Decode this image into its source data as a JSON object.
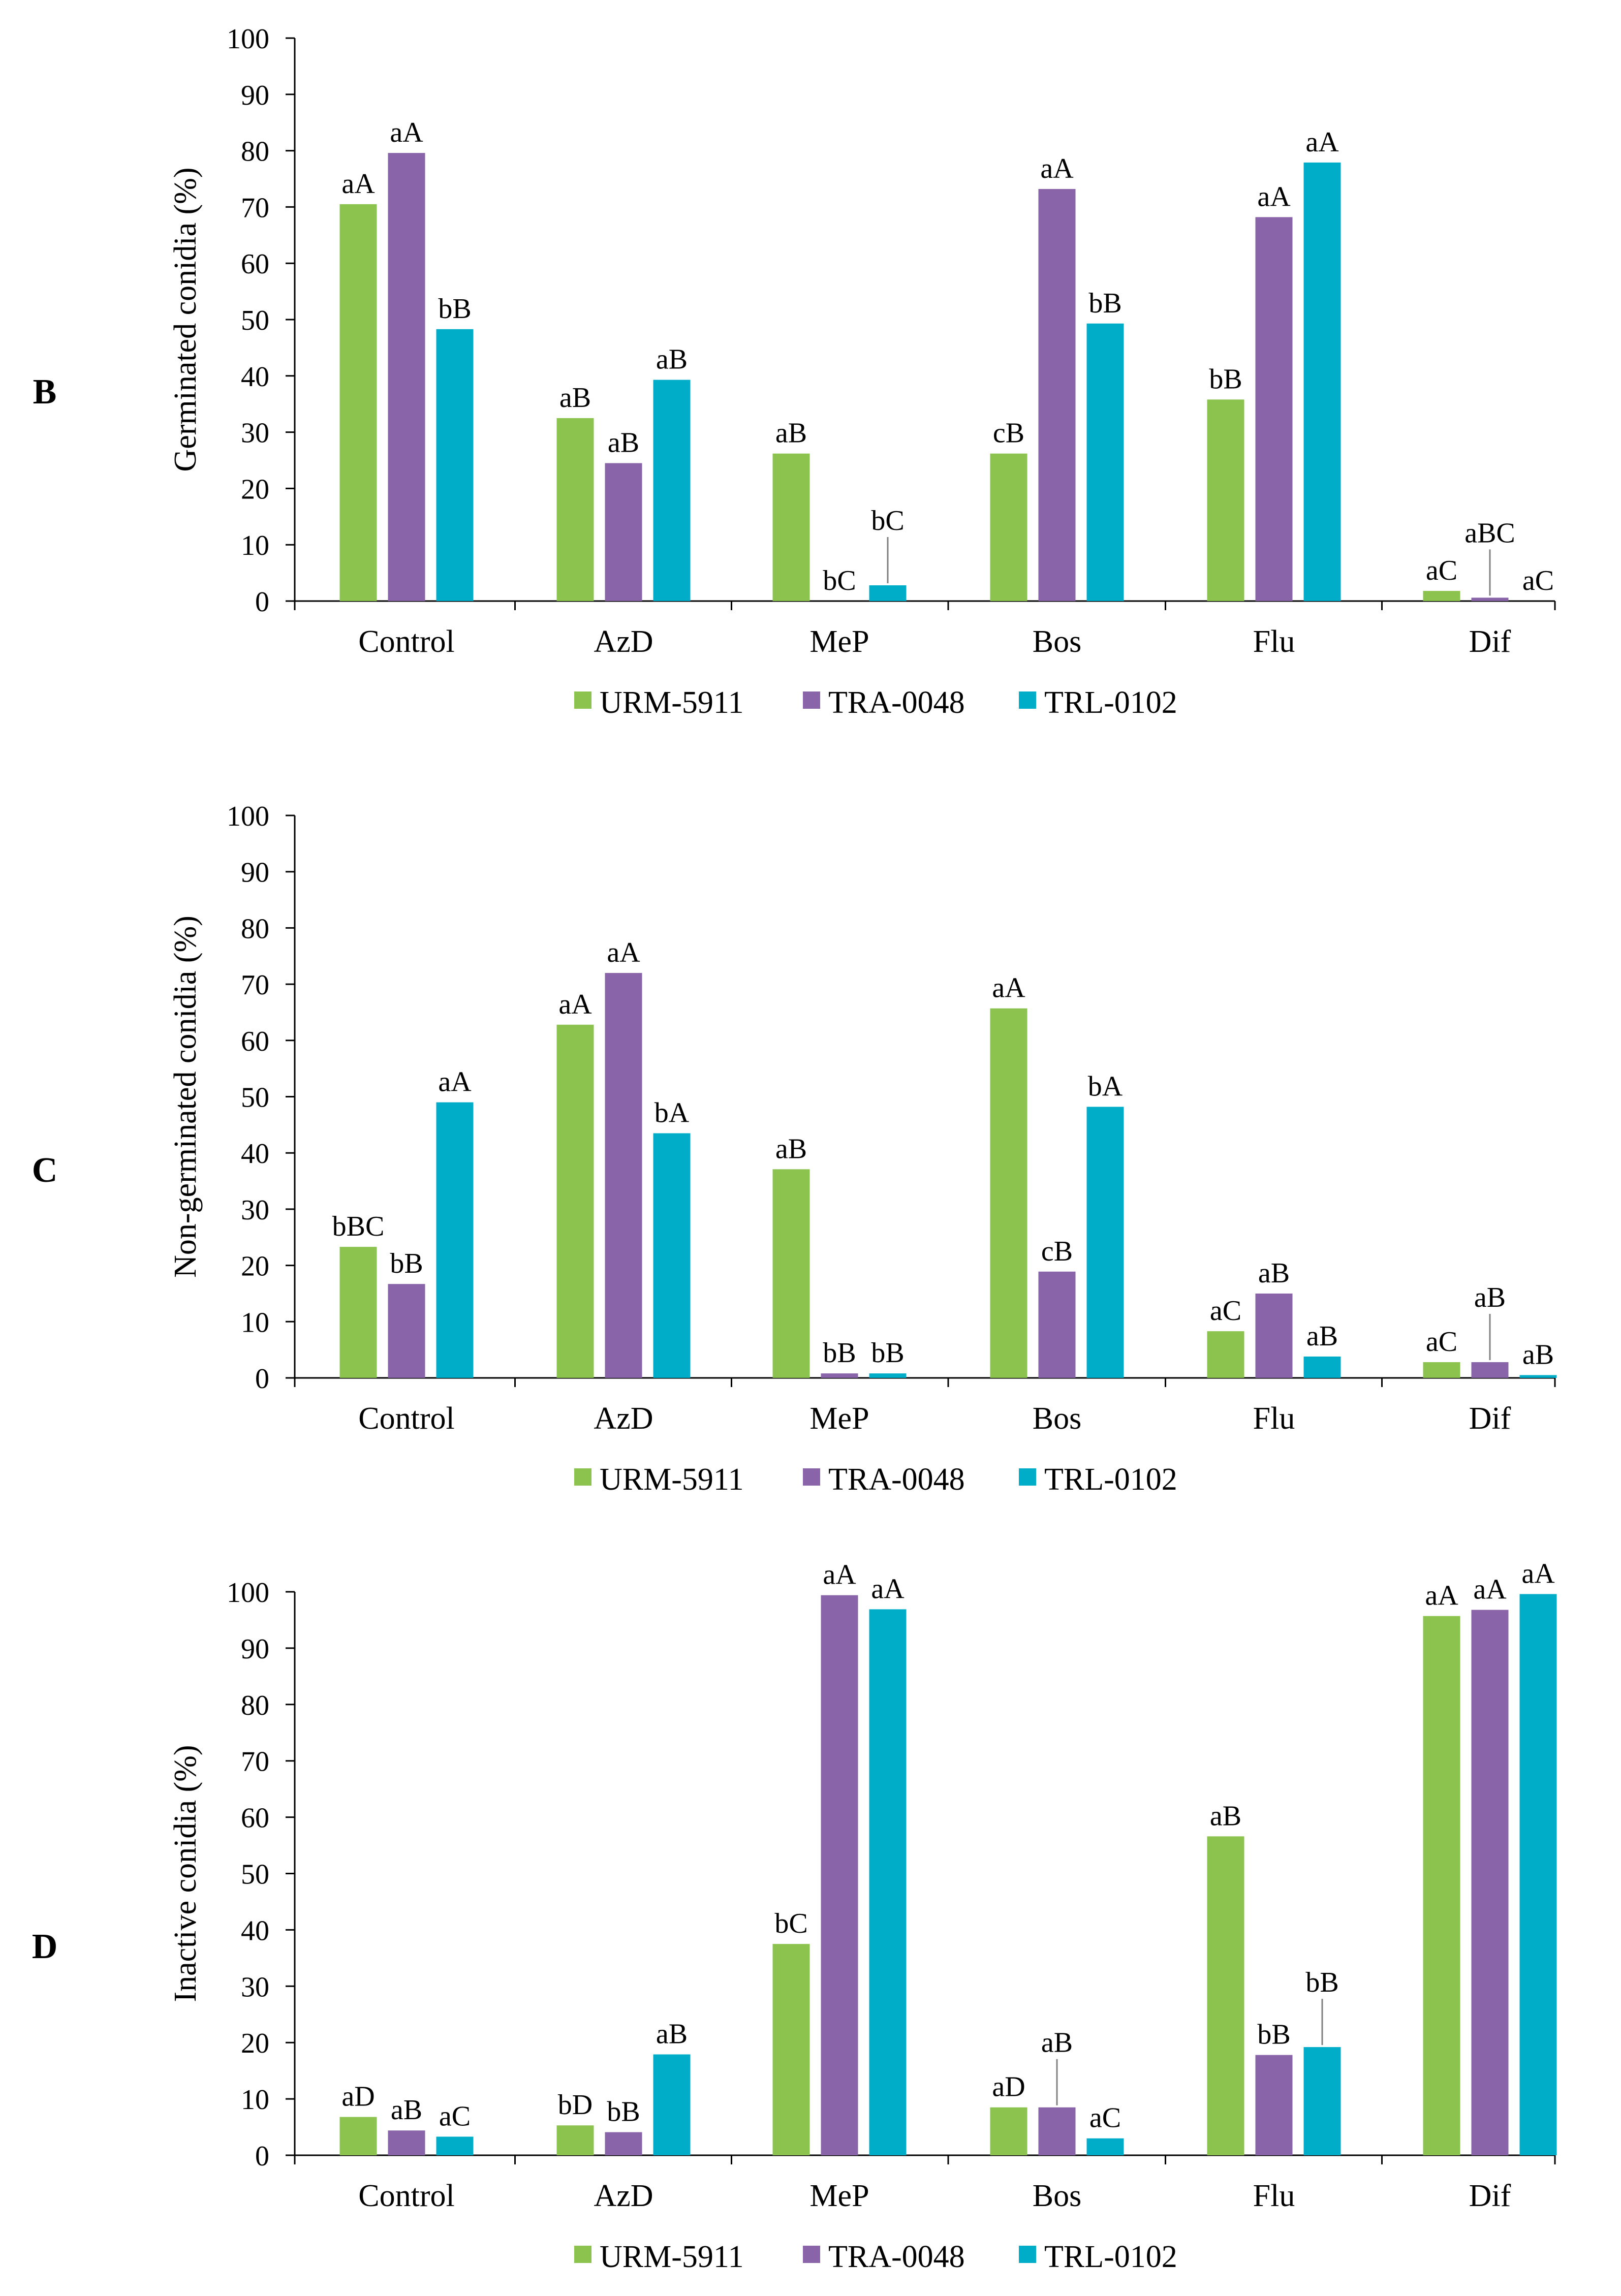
{
  "colors": {
    "URM-5911": "#8cc34f",
    "TRA-0048": "#8a64a8",
    "TRL-0102": "#00adc8",
    "axis": "#000000",
    "leader": "#808080"
  },
  "chart_data": [
    {
      "panel": "B",
      "type": "bar",
      "ylabel": "Germinated conidia (%)",
      "xlabel": "",
      "ylim": [
        0,
        100
      ],
      "yticks": [
        "0",
        "10",
        "20",
        "30",
        "40",
        "50",
        "60",
        "70",
        "80",
        "90",
        "100"
      ],
      "categories": [
        "Control",
        "AzD",
        "MeP",
        "Bos",
        "Flu",
        "Dif"
      ],
      "legend": [
        "URM-5911",
        "TRA-0048",
        "TRL-0102"
      ],
      "series": [
        {
          "name": "URM-5911",
          "values": [
            70.5,
            32.5,
            26.2,
            26.2,
            35.8,
            1.8
          ],
          "labels": [
            "aA",
            "aB",
            "aB",
            "cB",
            "bB",
            "aC"
          ]
        },
        {
          "name": "TRA-0048",
          "values": [
            79.6,
            24.5,
            0,
            73.2,
            68.2,
            0.6
          ],
          "labels": [
            "aA",
            "aB",
            "bC",
            "aA",
            "aA",
            "aBC"
          ]
        },
        {
          "name": "TRL-0102",
          "values": [
            48.3,
            39.3,
            2.8,
            49.3,
            77.9,
            0
          ],
          "labels": [
            "bB",
            "aB",
            "bC",
            "bB",
            "aA",
            "aC"
          ]
        }
      ]
    },
    {
      "panel": "C",
      "type": "bar",
      "ylabel": "Non-germinated conidia (%)",
      "xlabel": "",
      "ylim": [
        0,
        100
      ],
      "yticks": [
        "0",
        "10",
        "20",
        "30",
        "40",
        "50",
        "60",
        "70",
        "80",
        "90",
        "100"
      ],
      "categories": [
        "Control",
        "AzD",
        "MeP",
        "Bos",
        "Flu",
        "Dif"
      ],
      "legend": [
        "URM-5911",
        "TRA-0048",
        "TRL-0102"
      ],
      "series": [
        {
          "name": "URM-5911",
          "values": [
            23.3,
            62.8,
            37.1,
            65.7,
            8.3,
            2.8
          ],
          "labels": [
            "bBC",
            "aA",
            "aB",
            "aA",
            "aC",
            "aC"
          ]
        },
        {
          "name": "TRA-0048",
          "values": [
            16.7,
            72.0,
            0.8,
            18.9,
            15.0,
            2.8
          ],
          "labels": [
            "bB",
            "aA",
            "bB",
            "cB",
            "aB",
            "aB"
          ]
        },
        {
          "name": "TRL-0102",
          "values": [
            49.0,
            43.5,
            0.8,
            48.2,
            3.8,
            0.5
          ],
          "labels": [
            "aA",
            "bA",
            "bB",
            "bA",
            "aB",
            "aB"
          ]
        }
      ]
    },
    {
      "panel": "D",
      "type": "bar",
      "ylabel": "Inactive conidia (%)",
      "xlabel": "",
      "ylim": [
        0,
        100
      ],
      "yticks": [
        "0",
        "10",
        "20",
        "30",
        "40",
        "50",
        "60",
        "70",
        "80",
        "90",
        "100"
      ],
      "categories": [
        "Control",
        "AzD",
        "MeP",
        "Bos",
        "Flu",
        "Dif"
      ],
      "legend": [
        "URM-5911",
        "TRA-0048",
        "TRL-0102"
      ],
      "series": [
        {
          "name": "URM-5911",
          "values": [
            6.8,
            5.3,
            37.5,
            8.5,
            56.6,
            95.7
          ],
          "labels": [
            "aD",
            "bD",
            "bC",
            "aD",
            "aB",
            "aA"
          ]
        },
        {
          "name": "TRA-0048",
          "values": [
            4.4,
            4.1,
            99.4,
            8.5,
            17.8,
            96.8
          ],
          "labels": [
            "aB",
            "bB",
            "aA",
            "aB",
            "bB",
            "aA"
          ]
        },
        {
          "name": "TRL-0102",
          "values": [
            3.3,
            17.9,
            96.9,
            3.0,
            19.2,
            99.6
          ],
          "labels": [
            "aC",
            "aB",
            "aA",
            "aC",
            "bB",
            "aA"
          ]
        }
      ]
    }
  ]
}
